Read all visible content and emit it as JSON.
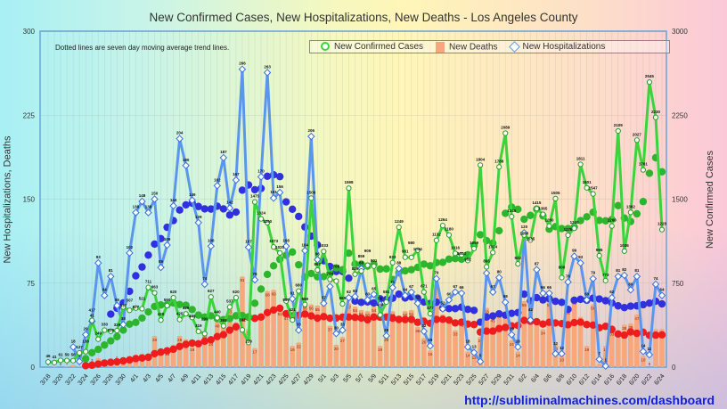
{
  "chart_data": {
    "type": "line",
    "title": "New Confirmed Cases, New Hospitalizations, New Deaths - Los Angeles County",
    "note": "Dotted lines are seven day moving average trend lines.",
    "ylabel_left": "New Hospitalizations, Deaths",
    "ylabel_right": "New Confirmed Cases",
    "ylim_left": [
      0,
      300
    ],
    "ylim_right": [
      0,
      3000
    ],
    "yticks_left": [
      "0",
      "75",
      "150",
      "225",
      "300"
    ],
    "yticks_right": [
      "0",
      "750",
      "1500",
      "2250",
      "3000"
    ],
    "legend_position": "top-right",
    "legend": [
      "New Confirmed Cases",
      "New Deaths",
      "New Hospitalizations"
    ],
    "colors": {
      "cases": "#3cd43c",
      "cases_avg": "#2db52d",
      "deaths": "#f7a77c",
      "deaths_avg": "#ee1c1c",
      "hosp": "#5b96ee",
      "hosp_avg": "#3030e0"
    },
    "x": [
      "3/18",
      "3/19",
      "3/20",
      "3/21",
      "3/22",
      "3/23",
      "3/24",
      "3/25",
      "3/26",
      "3/27",
      "3/28",
      "3/29",
      "3/30",
      "3/31",
      "4/1",
      "4/2",
      "4/3",
      "4/4",
      "4/5",
      "4/6",
      "4/7",
      "4/8",
      "4/9",
      "4/10",
      "4/11",
      "4/12",
      "4/13",
      "4/14",
      "4/15",
      "4/16",
      "4/17",
      "4/18",
      "4/19",
      "4/20",
      "4/21",
      "4/22",
      "4/23",
      "4/24",
      "4/25",
      "4/26",
      "4/27",
      "4/28",
      "4/29",
      "4/30",
      "5/1",
      "5/2",
      "5/3",
      "5/4",
      "5/5",
      "5/6",
      "5/7",
      "5/8",
      "5/9",
      "5/10",
      "5/11",
      "5/12",
      "5/13",
      "5/14",
      "5/15",
      "5/16",
      "5/17",
      "5/18",
      "5/19",
      "5/20",
      "5/21",
      "5/22",
      "5/23",
      "5/24",
      "5/25",
      "5/26",
      "5/27",
      "5/28",
      "5/29",
      "5/30",
      "5/31",
      "6/1",
      "6/2",
      "6/3",
      "6/4",
      "6/5",
      "6/6",
      "6/7",
      "6/8",
      "6/9",
      "6/10",
      "6/11",
      "6/12",
      "6/13",
      "6/14",
      "6/15",
      "6/16",
      "6/17",
      "6/18",
      "6/19",
      "6/20",
      "6/21",
      "6/22",
      "6/23",
      "6/24"
    ],
    "series": [
      {
        "name": "New Confirmed Cases",
        "axis": "right",
        "values": [
          46,
          41,
          61,
          59,
          58,
          127,
          138,
          417,
          249,
          330,
          320,
          326,
          537,
          507,
          527,
          521,
          711,
          663,
          420,
          550,
          620,
          425,
          476,
          443,
          319,
          299,
          627,
          440,
          368,
          537,
          620,
          332,
          220,
          1475,
          1324,
          1290,
          1073,
          1020,
          590,
          421,
          680,
          559,
          1509,
          867,
          1033,
          784,
          768,
          565,
          1598,
          829,
          859,
          909,
          901,
          466,
          581,
          933,
          1249,
          981,
          980,
          1044,
          671,
          477,
          1132,
          1264,
          1180,
          1016,
          1003,
          952,
          1059,
          1804,
          895,
          1024,
          1788,
          2089,
          1345,
          922,
          1180,
          1135,
          1415,
          1365,
          1260,
          1505,
          800,
          1178,
          1240,
          1811,
          1601,
          1547,
          995,
          773,
          1260,
          2109,
          1036,
          1382,
          2027,
          1761,
          2545,
          2230,
          1228
        ]
      },
      {
        "name": "New Deaths",
        "axis": "left",
        "values": [
          0,
          1,
          0,
          1,
          2,
          1,
          4,
          3,
          8,
          6,
          6,
          5,
          7,
          10,
          11,
          12,
          11,
          28,
          15,
          15,
          20,
          28,
          25,
          19,
          24,
          31,
          24,
          40,
          40,
          53,
          40,
          81,
          34,
          17,
          48,
          68,
          69,
          51,
          47,
          19,
          22,
          56,
          56,
          55,
          61,
          37,
          20,
          27,
          57,
          54,
          51,
          50,
          54,
          19,
          28,
          50,
          46,
          50,
          51,
          36,
          26,
          15,
          74,
          47,
          45,
          33,
          41,
          14,
          12,
          27,
          53,
          45,
          49,
          48,
          24,
          14,
          59,
          48,
          42,
          34,
          59,
          20,
          10,
          52,
          61,
          45,
          19,
          56,
          3,
          19,
          33,
          32,
          38,
          39,
          47,
          10,
          0,
          34,
          34
        ]
      },
      {
        "name": "New Hospitalizations",
        "axis": "left",
        "values": [
          null,
          null,
          null,
          null,
          18,
          5,
          29,
          41,
          93,
          64,
          81,
          55,
          38,
          102,
          138,
          148,
          138,
          150,
          89,
          109,
          144,
          204,
          180,
          149,
          129,
          74,
          108,
          162,
          187,
          142,
          167,
          266,
          107,
          78,
          170,
          263,
          151,
          156,
          108,
          61,
          33,
          104,
          206,
          96,
          57,
          72,
          30,
          33,
          62,
          63,
          88,
          60,
          65,
          56,
          28,
          71,
          88,
          64,
          67,
          57,
          32,
          19,
          79,
          52,
          60,
          67,
          66,
          18,
          13,
          5,
          84,
          67,
          80,
          58,
          29,
          18,
          120,
          42,
          87,
          66,
          66,
          12,
          12,
          76,
          99,
          93,
          60,
          79,
          7,
          1,
          62,
          81,
          82,
          69,
          81,
          14,
          11,
          74,
          64
        ]
      }
    ]
  },
  "footer": {
    "url": "http://subliminalmachines.com/dashboard"
  }
}
